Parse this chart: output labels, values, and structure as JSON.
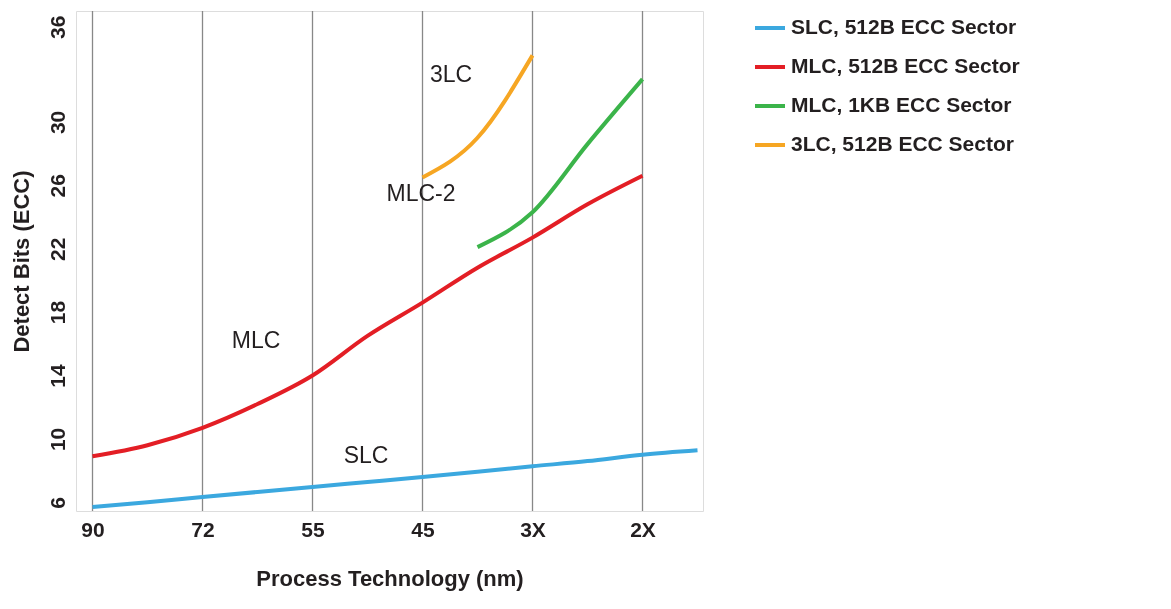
{
  "chart_data": {
    "type": "line",
    "xlabel": "Process Technology (nm)",
    "ylabel": "Detect Bits (ECC)",
    "categories": [
      "90",
      null,
      "72",
      null,
      "55",
      null,
      "45",
      null,
      "3X",
      null,
      "2X",
      null
    ],
    "ylim": [
      5.45,
      37
    ],
    "yticks": [
      6,
      10,
      14,
      18,
      22,
      26,
      30,
      36
    ],
    "grid": "x",
    "legend": "right",
    "line_style": "solid",
    "series": [
      {
        "name": "SLC, 512B ECC Sector",
        "color": "#3ba8df",
        "values": [
          5.7,
          6.0,
          6.33,
          6.65,
          6.96,
          7.28,
          7.6,
          7.93,
          8.27,
          8.6,
          9.0,
          9.28
        ]
      },
      {
        "name": "MLC, 512B ECC Sector",
        "color": "#e31e25",
        "values": [
          8.9,
          9.6,
          10.7,
          12.2,
          14.0,
          16.5,
          18.6,
          20.8,
          22.7,
          24.8,
          26.6,
          null
        ]
      },
      {
        "name": "MLC, 1KB ECC Sector",
        "color": "#3bb44a",
        "values": [
          null,
          null,
          null,
          null,
          null,
          null,
          null,
          22.1,
          24.3,
          28.6,
          32.7,
          null
        ]
      },
      {
        "name": "3LC, 512B ECC Sector",
        "color": "#f6a623",
        "values": [
          null,
          null,
          null,
          null,
          null,
          null,
          26.5,
          29.0,
          34.2,
          null,
          null,
          null
        ]
      }
    ],
    "annotations": [
      "3LC",
      "MLC-2",
      "MLC",
      "SLC"
    ]
  }
}
